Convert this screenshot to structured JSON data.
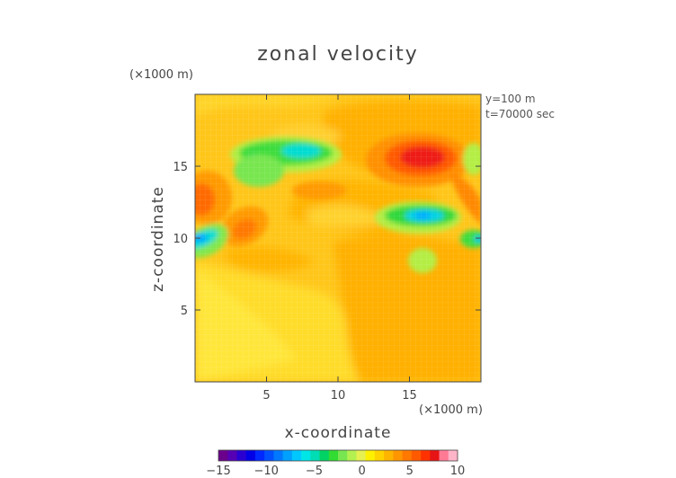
{
  "chart_data": {
    "type": "heatmap",
    "title": "zonal velocity",
    "xlabel": "x-coordinate",
    "ylabel": "z-coordinate",
    "x_scale_label": "(×1000 m)",
    "y_scale_label": "(×1000 m)",
    "annotations": [
      "y=100 m",
      "t=70000 sec"
    ],
    "xlim": [
      0,
      20
    ],
    "ylim": [
      0,
      20
    ],
    "xticks": [
      "5",
      "10",
      "15"
    ],
    "yticks": [
      "5",
      "10",
      "15"
    ],
    "colorbar": {
      "range": [
        -15,
        10
      ],
      "ticks": [
        "−15",
        "−10",
        "−5",
        "0",
        "5",
        "10"
      ],
      "colors": [
        "#6a008c",
        "#5500b4",
        "#2a00d2",
        "#0000e6",
        "#0028ff",
        "#0050ff",
        "#0078ff",
        "#00a0ff",
        "#00c8ff",
        "#00e6e6",
        "#00dcb4",
        "#00d264",
        "#32dc32",
        "#78e650",
        "#b4f050",
        "#e6f050",
        "#fff000",
        "#ffd200",
        "#ffb400",
        "#ff9600",
        "#ff7800",
        "#ff5a00",
        "#ff3200",
        "#e61414",
        "#ff7a94",
        "#ffb4c8"
      ]
    },
    "features": [
      {
        "x": 16,
        "z": 15.6,
        "value": 8
      },
      {
        "x": 7,
        "z": 16,
        "value": -6
      },
      {
        "x": 4,
        "z": 15.5,
        "value": -4
      },
      {
        "x": 15.5,
        "z": 11.5,
        "value": -6
      },
      {
        "x": 1,
        "z": 10,
        "value": -6
      },
      {
        "x": 19,
        "z": 10,
        "value": -3
      },
      {
        "x": 19.5,
        "z": 16,
        "value": -2
      },
      {
        "x": 1,
        "z": 13,
        "value": 5
      },
      {
        "x": 3.5,
        "z": 10.5,
        "value": 4
      },
      {
        "x": 8.5,
        "z": 13,
        "value": 3
      },
      {
        "x": 19.6,
        "z": 13,
        "value": 4
      }
    ]
  }
}
